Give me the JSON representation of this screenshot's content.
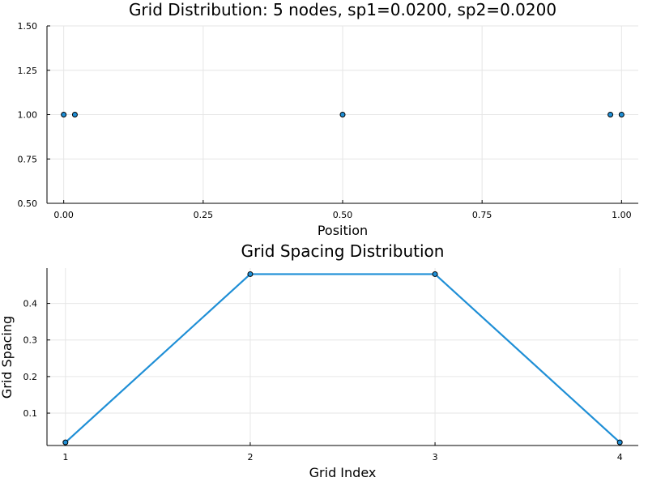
{
  "chart_data": [
    {
      "type": "scatter",
      "title": "Grid Distribution: 5 nodes, sp1=0.0200, sp2=0.0200",
      "xlabel": "Position",
      "ylabel": "",
      "xlim": [
        -0.03,
        1.03
      ],
      "ylim": [
        0.5,
        1.5
      ],
      "xticks": [
        0,
        0.25,
        0.5,
        0.75,
        1
      ],
      "xtick_labels": [
        "0.00",
        "0.25",
        "0.50",
        "0.75",
        "1.00"
      ],
      "yticks": [
        0.5,
        0.75,
        1,
        1.25,
        1.5
      ],
      "ytick_labels": [
        "0.50",
        "0.75",
        "1.00",
        "1.25",
        "1.50"
      ],
      "grid": true,
      "series": [
        {
          "x": [
            0,
            0.02,
            0.5,
            0.98,
            1
          ],
          "y": [
            1,
            1,
            1,
            1,
            1
          ],
          "color": "#1f8fd6"
        }
      ]
    },
    {
      "type": "line",
      "title": "Grid Spacing Distribution",
      "xlabel": "Grid Index",
      "ylabel": "Grid Spacing",
      "xlim": [
        0.9,
        4.1
      ],
      "ylim": [
        0.0115,
        0.4965
      ],
      "xticks": [
        1,
        2,
        3,
        4
      ],
      "xtick_labels": [
        "1",
        "2",
        "3",
        "4"
      ],
      "yticks": [
        0.1,
        0.2,
        0.3,
        0.4
      ],
      "ytick_labels": [
        "0.1",
        "0.2",
        "0.3",
        "0.4"
      ],
      "grid": true,
      "series": [
        {
          "x": [
            1,
            2,
            3,
            4
          ],
          "y": [
            0.02,
            0.48,
            0.48,
            0.02
          ],
          "color": "#1f8fd6",
          "markers": true
        }
      ]
    }
  ]
}
